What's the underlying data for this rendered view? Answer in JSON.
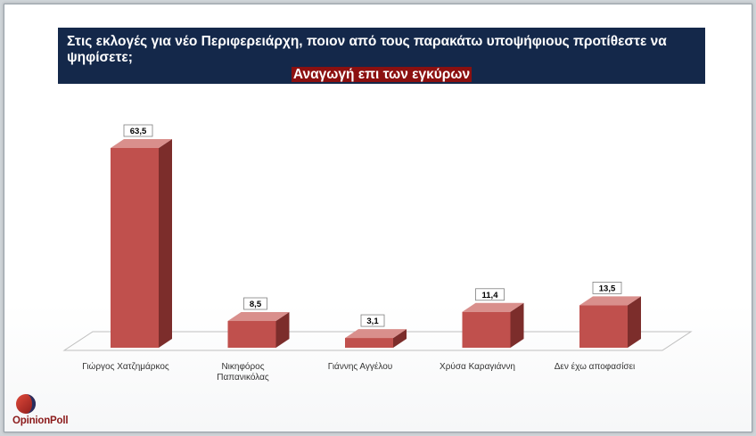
{
  "title": {
    "question": "Στις εκλογές για νέο Περιφερειάρχη, ποιον από τους παρακάτω υποψήφιους προτίθεστε να ψηφίσετε;",
    "subtitle": "Αναγωγή επι των εγκύρων"
  },
  "logo": {
    "part1": "Opinion",
    "part2": "Poll"
  },
  "colors": {
    "bar_front": "#c0504d",
    "bar_side": "#7c2d2b",
    "bar_top": "#d98f8c",
    "title_bg": "#14284a",
    "highlight": "#8b1010"
  },
  "chart_data": {
    "type": "bar",
    "categories": [
      [
        "Γιώργος Χατζημάρκος"
      ],
      [
        "Νικηφόρος",
        "Παπανικόλας"
      ],
      [
        "Γιάννης Αγγέλου"
      ],
      [
        "Χρύσα Καραγιάννη"
      ],
      [
        "Δεν έχω αποφασίσει"
      ]
    ],
    "values": [
      63.5,
      8.5,
      3.1,
      11.4,
      13.5
    ],
    "value_labels": [
      "63,5",
      "8,5",
      "3,1",
      "11,4",
      "13,5"
    ],
    "ylim": [
      0,
      70
    ],
    "grid": false,
    "legend": "none",
    "style": "3d-column"
  }
}
